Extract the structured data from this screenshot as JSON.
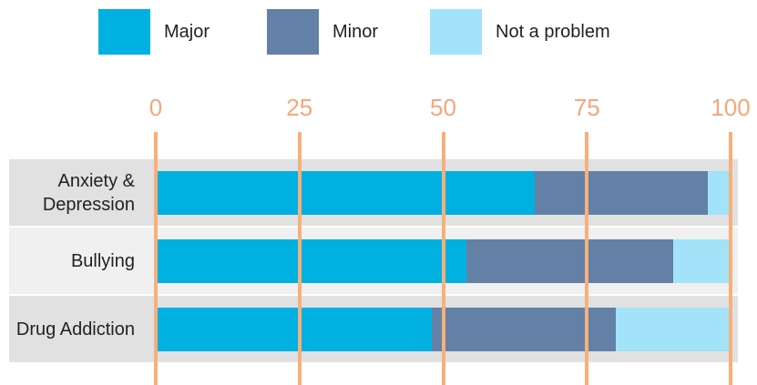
{
  "chart_data": {
    "type": "stacked-bar-horizontal",
    "categories": [
      "Anxiety & Depression",
      "Bullying",
      "Drug Addiction"
    ],
    "series": [
      {
        "name": "Major",
        "color": "#00b0e0",
        "values": [
          66,
          54,
          48
        ]
      },
      {
        "name": "Minor",
        "color": "#6381a6",
        "values": [
          30,
          36,
          32
        ]
      },
      {
        "name": "Not a problem",
        "color": "#a2e3fa",
        "values": [
          4,
          10,
          20
        ]
      }
    ],
    "xlim": [
      0,
      100
    ],
    "xticks": [
      0,
      25,
      50,
      75,
      100
    ],
    "grid": true,
    "grid_color": "#f7b07c",
    "legend": "top"
  }
}
